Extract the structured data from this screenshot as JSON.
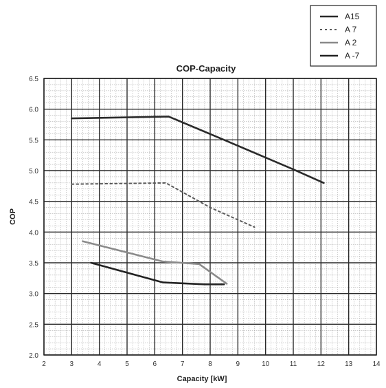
{
  "chart_data": {
    "type": "line",
    "title": "COP-Capacity",
    "xlabel": "Capacity [kW]",
    "ylabel": "COP",
    "xlim": [
      2,
      14
    ],
    "ylim": [
      2.0,
      6.5
    ],
    "x_ticks": [
      "2",
      "3",
      "4",
      "5",
      "6",
      "7",
      "8",
      "9",
      "10",
      "11",
      "12",
      "13",
      "14"
    ],
    "y_ticks": [
      "2.0",
      "2.5",
      "3.0",
      "3.5",
      "4.0",
      "4.5",
      "5.0",
      "5.5",
      "6.0",
      "6.5"
    ],
    "grid": true,
    "legend_position": "top-right",
    "series": [
      {
        "name": "A15",
        "color": "#2a2a2a",
        "dash": "solid",
        "points": [
          [
            3.0,
            5.85
          ],
          [
            6.5,
            5.88
          ],
          [
            8.5,
            5.5
          ],
          [
            11.0,
            5.02
          ],
          [
            12.1,
            4.8
          ]
        ]
      },
      {
        "name": "A 7",
        "color": "#5a5a5a",
        "dash": "dotted",
        "points": [
          [
            3.0,
            4.78
          ],
          [
            6.4,
            4.8
          ],
          [
            8.0,
            4.4
          ],
          [
            9.6,
            4.08
          ]
        ]
      },
      {
        "name": "A 2",
        "color": "#8a8a8a",
        "dash": "solid",
        "points": [
          [
            3.4,
            3.85
          ],
          [
            6.3,
            3.52
          ],
          [
            7.6,
            3.48
          ],
          [
            8.6,
            3.16
          ]
        ]
      },
      {
        "name": "A -7",
        "color": "#222222",
        "dash": "solid",
        "points": [
          [
            3.7,
            3.5
          ],
          [
            6.3,
            3.18
          ],
          [
            7.8,
            3.15
          ],
          [
            8.5,
            3.15
          ]
        ]
      }
    ]
  }
}
